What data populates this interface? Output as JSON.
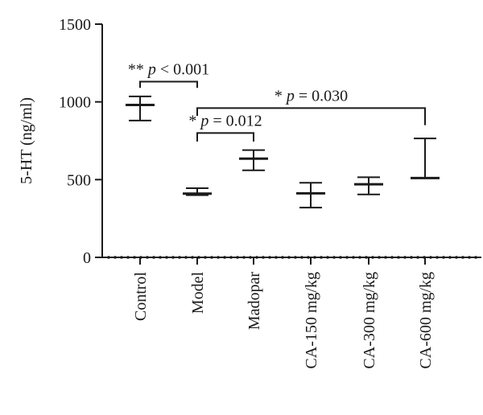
{
  "chart_data": {
    "type": "scatter",
    "ylabel": "5-HT (ng/ml)",
    "ylim": [
      0,
      1500
    ],
    "yticks": [
      0,
      500,
      1000,
      1500
    ],
    "categories": [
      "Control",
      "Model",
      "Madopar",
      "CA-150 mg/kg",
      "CA-300 mg/kg",
      "CA-600 mg/kg"
    ],
    "mean": [
      980,
      410,
      635,
      412,
      470,
      510
    ],
    "error_upper": [
      1035,
      445,
      690,
      480,
      515,
      765
    ],
    "error_lower": [
      880,
      400,
      560,
      320,
      405,
      510
    ],
    "annotations": [
      {
        "stars": "**",
        "p": "p",
        "op": " < ",
        "value": "0.001",
        "from": 0,
        "to": 1,
        "bracket_y": 1130,
        "drop_to": [
          1090,
          1090
        ]
      },
      {
        "stars": "*",
        "p": "p",
        "op": " = ",
        "value": "0.030",
        "from": 1,
        "to": 5,
        "bracket_y": 960,
        "drop_to": [
          910,
          850
        ]
      },
      {
        "stars": "*",
        "p": "p",
        "op": " = ",
        "value": "0.012",
        "from": 1,
        "to": 2,
        "bracket_y": 800,
        "drop_to": [
          745,
          745
        ]
      }
    ],
    "grid": false,
    "colors": {
      "ink": "#1a1a1a"
    }
  }
}
